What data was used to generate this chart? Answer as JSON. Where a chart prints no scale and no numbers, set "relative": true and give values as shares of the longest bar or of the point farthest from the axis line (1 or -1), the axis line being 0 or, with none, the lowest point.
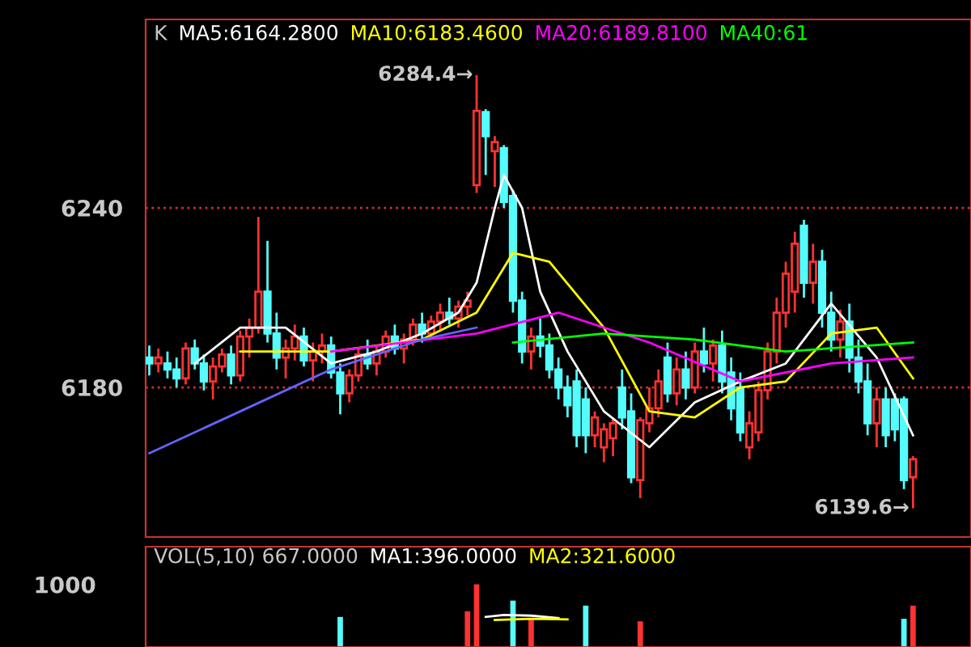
{
  "chart_data": [
    {
      "type": "candlestick",
      "categories": [
        null,
        null,
        null,
        null,
        null,
        null,
        null,
        null,
        null,
        null,
        null,
        null,
        null,
        null,
        null,
        null,
        null,
        null,
        null,
        null,
        null,
        null,
        null,
        null,
        null,
        null,
        null,
        null,
        null,
        null,
        null,
        null,
        null,
        null,
        null,
        null,
        null,
        null,
        null,
        null,
        null,
        null,
        null,
        null,
        null,
        null,
        null,
        null,
        null,
        null,
        null,
        null,
        null,
        null,
        null,
        null,
        null,
        null,
        null,
        null,
        null,
        null,
        null,
        null,
        null,
        null,
        null,
        null,
        null,
        null,
        null,
        null,
        null,
        null,
        null,
        null,
        null,
        null,
        null,
        null,
        null,
        null,
        null,
        null,
        null
      ],
      "ohlc": [
        [
          6190,
          6194,
          6184,
          6188
        ],
        [
          6188,
          6193,
          6185,
          6190
        ],
        [
          6188,
          6192,
          6183,
          6186
        ],
        [
          6186,
          6190,
          6180,
          6183
        ],
        [
          6183,
          6195,
          6181,
          6193
        ],
        [
          6193,
          6196,
          6186,
          6188
        ],
        [
          6188,
          6191,
          6179,
          6182
        ],
        [
          6182,
          6190,
          6176,
          6187
        ],
        [
          6187,
          6193,
          6185,
          6191
        ],
        [
          6191,
          6194,
          6181,
          6184
        ],
        [
          6184,
          6199,
          6182,
          6197
        ],
        [
          6197,
          6203,
          6190,
          6200
        ],
        [
          6200,
          6237,
          6198,
          6212
        ],
        [
          6212,
          6229,
          6195,
          6198
        ],
        [
          6198,
          6205,
          6186,
          6190
        ],
        [
          6190,
          6196,
          6183,
          6193
        ],
        [
          6193,
          6201,
          6189,
          6197
        ],
        [
          6197,
          6200,
          6187,
          6189
        ],
        [
          6189,
          6195,
          6182,
          6192
        ],
        [
          6192,
          6198,
          6188,
          6194
        ],
        [
          6194,
          6197,
          6183,
          6185
        ],
        [
          6185,
          6188,
          6171,
          6178
        ],
        [
          6178,
          6186,
          6175,
          6184
        ],
        [
          6184,
          6193,
          6182,
          6191
        ],
        [
          6191,
          6196,
          6186,
          6188
        ],
        [
          6188,
          6194,
          6184,
          6192
        ],
        [
          6192,
          6199,
          6190,
          6197
        ],
        [
          6197,
          6201,
          6191,
          6193
        ],
        [
          6193,
          6198,
          6188,
          6196
        ],
        [
          6196,
          6203,
          6194,
          6201
        ],
        [
          6201,
          6205,
          6195,
          6198
        ],
        [
          6198,
          6204,
          6196,
          6202
        ],
        [
          6202,
          6208,
          6199,
          6205
        ],
        [
          6205,
          6210,
          6201,
          6203
        ],
        [
          6203,
          6209,
          6200,
          6207
        ],
        [
          6207,
          6212,
          6204,
          6209
        ],
        [
          6247.6,
          6284.4,
          6245,
          6272.4
        ],
        [
          6272,
          6273,
          6251,
          6264
        ],
        [
          6259,
          6264,
          6247,
          6262
        ],
        [
          6260,
          6261,
          6240,
          6242
        ],
        [
          6244,
          6246,
          6205,
          6209
        ],
        [
          6209,
          6212,
          6188,
          6192
        ],
        [
          6192,
          6200,
          6186,
          6197
        ],
        [
          6197,
          6203,
          6190,
          6194
        ],
        [
          6194,
          6198,
          6183,
          6186
        ],
        [
          6186,
          6190,
          6176,
          6180
        ],
        [
          6180,
          6184,
          6170,
          6174
        ],
        [
          6182,
          6186,
          6160,
          6164
        ],
        [
          6176,
          6180,
          6158,
          6164
        ],
        [
          6164,
          6172,
          6160,
          6170
        ],
        [
          6160,
          6168,
          6155,
          6166
        ],
        [
          6163,
          6170,
          6157,
          6168
        ],
        [
          6180,
          6186,
          6166,
          6170
        ],
        [
          6172,
          6178,
          6148,
          6150
        ],
        [
          6149,
          6170,
          6143,
          6169
        ],
        [
          6168,
          6180,
          6165,
          6173
        ],
        [
          6173,
          6186,
          6170,
          6182
        ],
        [
          6190,
          6195,
          6175,
          6178
        ],
        [
          6178,
          6190,
          6174,
          6186
        ],
        [
          6186,
          6192,
          6176,
          6180
        ],
        [
          6180,
          6195,
          6178,
          6192
        ],
        [
          6192,
          6200,
          6185,
          6188
        ],
        [
          6188,
          6196,
          6182,
          6194
        ],
        [
          6194,
          6199,
          6178,
          6182
        ],
        [
          6185,
          6190,
          6169,
          6173
        ],
        [
          6180,
          6185,
          6162,
          6165
        ],
        [
          6160,
          6172,
          6156,
          6168
        ],
        [
          6165,
          6182,
          6162,
          6179
        ],
        [
          6179,
          6195,
          6176,
          6192
        ],
        [
          6192,
          6210,
          6188,
          6205
        ],
        [
          6205,
          6222,
          6200,
          6218
        ],
        [
          6212,
          6232,
          6205,
          6228
        ],
        [
          6234,
          6236,
          6210,
          6215
        ],
        [
          6215,
          6228,
          6208,
          6222
        ],
        [
          6222,
          6226,
          6200,
          6205
        ],
        [
          6205,
          6212,
          6192,
          6196
        ],
        [
          6196,
          6206,
          6190,
          6202
        ],
        [
          6202,
          6208,
          6185,
          6190
        ],
        [
          6190,
          6196,
          6178,
          6182
        ],
        [
          6182,
          6188,
          6164,
          6168
        ],
        [
          6168,
          6180,
          6160,
          6176
        ],
        [
          6176,
          6180,
          6160,
          6164
        ],
        [
          6176,
          6178,
          6162,
          6166
        ],
        [
          6176,
          6177,
          6146,
          6149
        ],
        [
          6150,
          6157,
          6139.6,
          6156
        ]
      ],
      "colors": [
        "#54fcfc",
        "#ff3232",
        "#54fcfc",
        "#54fcfc",
        "#ff3232",
        "#54fcfc",
        "#54fcfc",
        "#ff3232",
        "#ff3232",
        "#54fcfc",
        "#ff3232",
        "#ff3232",
        "#ff3232",
        "#54fcfc",
        "#54fcfc",
        "#ff3232",
        "#ff3232",
        "#54fcfc",
        "#ff3232",
        "#ff3232",
        "#54fcfc",
        "#54fcfc",
        "#ff3232",
        "#ff3232",
        "#54fcfc",
        "#ff3232",
        "#ff3232",
        "#54fcfc",
        "#ff3232",
        "#ff3232",
        "#54fcfc",
        "#ff3232",
        "#ff3232",
        "#54fcfc",
        "#ff3232",
        "#ff3232",
        "#ff3232",
        "#54fcfc",
        "#ff3232",
        "#54fcfc",
        "#54fcfc",
        "#54fcfc",
        "#ff3232",
        "#54fcfc",
        "#54fcfc",
        "#54fcfc",
        "#54fcfc",
        "#54fcfc",
        "#54fcfc",
        "#ff3232",
        "#ff3232",
        "#ff3232",
        "#54fcfc",
        "#54fcfc",
        "#ff3232",
        "#ff3232",
        "#ff3232",
        "#54fcfc",
        "#ff3232",
        "#54fcfc",
        "#ff3232",
        "#54fcfc",
        "#ff3232",
        "#54fcfc",
        "#54fcfc",
        "#54fcfc",
        "#ff3232",
        "#ff3232",
        "#ff3232",
        "#ff3232",
        "#ff3232",
        "#ff3232",
        "#54fcfc",
        "#ff3232",
        "#54fcfc",
        "#54fcfc",
        "#ff3232",
        "#54fcfc",
        "#54fcfc",
        "#54fcfc",
        "#ff3232",
        "#54fcfc",
        "#54fcfc",
        "#54fcfc",
        "#ff3232"
      ],
      "series": [
        {
          "name": "MA5:6164.2800",
          "type": "line",
          "color": "#ffffff",
          "values": [
            null,
            null,
            null,
            null,
            null,
            6188,
            null,
            null,
            null,
            null,
            6200,
            null,
            null,
            null,
            null,
            6200,
            null,
            null,
            null,
            null,
            6188,
            null,
            null,
            null,
            null,
            6192,
            null,
            null,
            null,
            null,
            6198,
            null,
            null,
            null,
            6205,
            null,
            6215,
            null,
            6240,
            6251,
            null,
            6240,
            null,
            6212,
            null,
            null,
            6192,
            null,
            null,
            null,
            6172,
            null,
            null,
            null,
            null,
            6160,
            null,
            null,
            null,
            null,
            6175,
            null,
            null,
            null,
            null,
            6182,
            null,
            null,
            null,
            null,
            6188,
            null,
            null,
            null,
            null,
            6208,
            null,
            null,
            null,
            null,
            6190,
            null,
            null,
            null,
            6164
          ]
        },
        {
          "name": "MA10:6183.4600",
          "type": "line",
          "color": "#ffff00",
          "values": [
            null,
            null,
            null,
            null,
            null,
            null,
            null,
            null,
            null,
            null,
            6192,
            null,
            null,
            null,
            null,
            null,
            null,
            null,
            null,
            null,
            6192,
            null,
            null,
            null,
            null,
            null,
            null,
            null,
            null,
            null,
            6196,
            null,
            null,
            null,
            null,
            null,
            6205,
            null,
            null,
            null,
            6225,
            null,
            null,
            null,
            6222,
            null,
            null,
            null,
            null,
            null,
            6200,
            null,
            null,
            null,
            null,
            6172,
            null,
            null,
            null,
            null,
            6170,
            null,
            null,
            null,
            null,
            6180,
            null,
            null,
            null,
            null,
            6182,
            null,
            null,
            null,
            null,
            6198,
            null,
            null,
            null,
            null,
            6200,
            null,
            null,
            null,
            6183
          ]
        },
        {
          "name": "MA20:6189.8100",
          "type": "line",
          "color": "#ff00ff",
          "values": [
            null,
            null,
            null,
            null,
            null,
            null,
            null,
            null,
            null,
            null,
            null,
            null,
            null,
            null,
            null,
            null,
            null,
            null,
            null,
            null,
            6192,
            null,
            null,
            null,
            null,
            null,
            null,
            null,
            null,
            null,
            null,
            null,
            null,
            null,
            null,
            null,
            6198,
            null,
            null,
            null,
            null,
            null,
            null,
            null,
            null,
            6205,
            null,
            null,
            null,
            null,
            null,
            null,
            null,
            null,
            null,
            6195,
            null,
            null,
            null,
            null,
            null,
            null,
            null,
            null,
            null,
            6182,
            null,
            null,
            null,
            null,
            null,
            null,
            null,
            null,
            null,
            6188,
            null,
            null,
            null,
            null,
            null,
            null,
            null,
            null,
            6190
          ]
        },
        {
          "name": "MA40:61",
          "type": "line",
          "color": "#00ff00",
          "values": [
            null,
            null,
            null,
            null,
            null,
            null,
            null,
            null,
            null,
            null,
            null,
            null,
            null,
            null,
            null,
            null,
            null,
            null,
            null,
            null,
            null,
            null,
            null,
            null,
            null,
            null,
            null,
            null,
            null,
            null,
            null,
            null,
            null,
            null,
            null,
            null,
            null,
            null,
            null,
            null,
            6195,
            null,
            null,
            null,
            null,
            null,
            null,
            null,
            null,
            null,
            6198,
            null,
            null,
            null,
            null,
            null,
            null,
            null,
            null,
            null,
            6196,
            null,
            null,
            null,
            null,
            null,
            null,
            null,
            null,
            null,
            6192,
            null,
            null,
            null,
            null,
            null,
            null,
            null,
            null,
            null,
            null,
            null,
            null,
            null,
            6195
          ]
        },
        {
          "type": "line",
          "color": "#6464ff",
          "values": [
            6158,
            null,
            null,
            null,
            null,
            null,
            null,
            null,
            null,
            null,
            6172,
            null,
            null,
            null,
            null,
            null,
            null,
            null,
            null,
            null,
            6186,
            null,
            null,
            null,
            null,
            null,
            null,
            null,
            null,
            null,
            6196,
            null,
            null,
            null,
            null,
            null,
            6200,
            null,
            null,
            null,
            null,
            null,
            null,
            null,
            null,
            null,
            null,
            null,
            null,
            null,
            null,
            null,
            null,
            null,
            null,
            null,
            null,
            null,
            null,
            null,
            null,
            null,
            null,
            null,
            null,
            null,
            null,
            null,
            null,
            null,
            null,
            null,
            null,
            null,
            null,
            null,
            null,
            null,
            null,
            null,
            null,
            null,
            null,
            null,
            null
          ]
        }
      ],
      "annotations": [
        "K",
        "6284.4→",
        "6139.6→"
      ],
      "ylim": [
        6130,
        6303
      ],
      "yticks": [
        6240,
        6180
      ],
      "grid": "y",
      "legend": "top left",
      "tick_labels": "y"
    },
    {
      "type": "bar",
      "relative": true,
      "categories": [
        null,
        null,
        null,
        null,
        null,
        null,
        null,
        null,
        null,
        null,
        null,
        null,
        null,
        null,
        null,
        null,
        null,
        null,
        null,
        null,
        null,
        null,
        null,
        null,
        null,
        null,
        null,
        null,
        null,
        null,
        null,
        null,
        null,
        null,
        null,
        null,
        null,
        null,
        null,
        null,
        null,
        null,
        null,
        null,
        null,
        null,
        null,
        null,
        null,
        null,
        null,
        null,
        null,
        null,
        null,
        null,
        null,
        null,
        null,
        null,
        null,
        null,
        null,
        null,
        null,
        null,
        null,
        null,
        null,
        null,
        null,
        null,
        null,
        null,
        null,
        null,
        null,
        null,
        null,
        null,
        null,
        null,
        null,
        null,
        null
      ],
      "values": [
        null,
        null,
        null,
        null,
        null,
        null,
        null,
        null,
        null,
        null,
        null,
        null,
        null,
        null,
        null,
        null,
        null,
        null,
        null,
        null,
        null,
        0.48,
        null,
        null,
        null,
        null,
        null,
        null,
        null,
        null,
        null,
        null,
        null,
        null,
        null,
        0.57,
        1,
        null,
        null,
        null,
        0.74,
        null,
        0.45,
        null,
        null,
        null,
        null,
        null,
        0.66,
        null,
        null,
        null,
        null,
        null,
        0.41,
        null,
        null,
        null,
        null,
        null,
        null,
        null,
        null,
        null,
        null,
        null,
        null,
        null,
        null,
        null,
        null,
        null,
        null,
        null,
        null,
        null,
        null,
        null,
        null,
        null,
        null,
        null,
        null,
        0.45,
        0.66
      ],
      "colors": [
        "#54fcfc",
        "#ff3232",
        "#54fcfc",
        "#54fcfc",
        "#ff3232",
        "#54fcfc",
        "#54fcfc",
        "#ff3232",
        "#ff3232",
        "#54fcfc",
        "#ff3232",
        "#ff3232",
        "#ff3232",
        "#54fcfc",
        "#54fcfc",
        "#ff3232",
        "#ff3232",
        "#54fcfc",
        "#ff3232",
        "#ff3232",
        "#54fcfc",
        "#54fcfc",
        "#ff3232",
        "#ff3232",
        "#54fcfc",
        "#ff3232",
        "#ff3232",
        "#54fcfc",
        "#ff3232",
        "#ff3232",
        "#54fcfc",
        "#ff3232",
        "#ff3232",
        "#54fcfc",
        "#ff3232",
        "#ff3232",
        "#ff3232",
        "#54fcfc",
        "#ff3232",
        "#54fcfc",
        "#54fcfc",
        "#54fcfc",
        "#ff3232",
        "#54fcfc",
        "#54fcfc",
        "#54fcfc",
        "#54fcfc",
        "#54fcfc",
        "#54fcfc",
        "#ff3232",
        "#ff3232",
        "#ff3232",
        "#54fcfc",
        "#54fcfc",
        "#ff3232",
        "#ff3232",
        "#ff3232",
        "#54fcfc",
        "#ff3232",
        "#54fcfc",
        "#ff3232",
        "#54fcfc",
        "#ff3232",
        "#54fcfc",
        "#54fcfc",
        "#54fcfc",
        "#ff3232",
        "#ff3232",
        "#ff3232",
        "#ff3232",
        "#ff3232",
        "#ff3232",
        "#54fcfc",
        "#ff3232",
        "#54fcfc",
        "#54fcfc",
        "#ff3232",
        "#54fcfc",
        "#54fcfc",
        "#54fcfc",
        "#ff3232",
        "#54fcfc",
        "#54fcfc",
        "#54fcfc",
        "#ff3232"
      ],
      "series": [
        {
          "name": "MA1:396.0000",
          "type": "line",
          "color": "#ffffff",
          "values": [
            null,
            null,
            null,
            null,
            null,
            null,
            null,
            null,
            null,
            null,
            null,
            null,
            null,
            null,
            null,
            null,
            null,
            null,
            null,
            null,
            null,
            null,
            null,
            null,
            null,
            null,
            null,
            null,
            null,
            null,
            null,
            null,
            null,
            null,
            null,
            null,
            null,
            0.48,
            null,
            0.51,
            null,
            null,
            0.5,
            null,
            null,
            0.46,
            null,
            null,
            null,
            null,
            null,
            null,
            null,
            null,
            null,
            null,
            null,
            null,
            null,
            null,
            null,
            null,
            null,
            null,
            null,
            null,
            null,
            null,
            null,
            null,
            null,
            null,
            null,
            null,
            null,
            null,
            null,
            null,
            null,
            null,
            null,
            null,
            null,
            null,
            null
          ]
        },
        {
          "name": "MA2:321.6000",
          "type": "line",
          "color": "#ffff00",
          "values": [
            null,
            null,
            null,
            null,
            null,
            null,
            null,
            null,
            null,
            null,
            null,
            null,
            null,
            null,
            null,
            null,
            null,
            null,
            null,
            null,
            null,
            null,
            null,
            null,
            null,
            null,
            null,
            null,
            null,
            null,
            null,
            null,
            null,
            null,
            null,
            null,
            null,
            null,
            0.43,
            null,
            null,
            null,
            0.45,
            null,
            null,
            null,
            0.44,
            null,
            null,
            null,
            null,
            null,
            null,
            null,
            null,
            null,
            null,
            null,
            null,
            null,
            null,
            null,
            null,
            null,
            null,
            null,
            null,
            null,
            null,
            null,
            null,
            null,
            null,
            null,
            null,
            null,
            null,
            null,
            null,
            null,
            null,
            null,
            null,
            null,
            null
          ]
        }
      ],
      "annotations": [
        "VOL(5,10) 667.0000",
        "1000"
      ],
      "legend": "top left",
      "tick_labels": false
    }
  ]
}
